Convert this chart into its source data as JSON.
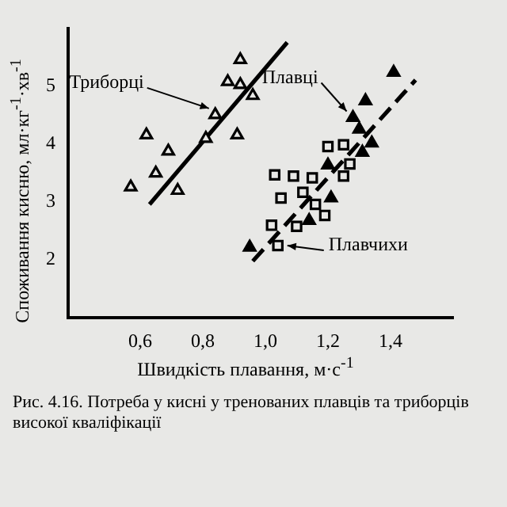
{
  "chart_data": {
    "type": "scatter",
    "xlabel": "Швидкість плавання, м·с$^{-1}$",
    "ylabel": "Споживання кисню, мл·кг$^{-1}$·хв$^{-1}$",
    "xlim": [
      0.37,
      1.6
    ],
    "ylim": [
      1,
      6
    ],
    "xticks": [
      {
        "value": 0.6,
        "label": "0,6"
      },
      {
        "value": 0.8,
        "label": "0,8"
      },
      {
        "value": 1.0,
        "label": "1,0"
      },
      {
        "value": 1.2,
        "label": "1,2"
      },
      {
        "value": 1.4,
        "label": "1,4"
      }
    ],
    "yticks": [
      2,
      3,
      4,
      5
    ],
    "grid": false,
    "legend": false,
    "series": [
      {
        "marker": "triangle",
        "color": "#e8e8e6",
        "x": [
          0.92,
          0.88,
          0.92,
          0.84,
          0.62,
          0.69,
          0.81,
          0.91,
          0.65,
          0.57,
          0.72,
          0.96
        ],
        "values": [
          5.46,
          5.08,
          5.03,
          4.51,
          4.16,
          3.88,
          4.1,
          4.16,
          3.5,
          3.26,
          3.2,
          4.84
        ]
      },
      {
        "marker": "triangle",
        "color": "#000000",
        "x": [
          1.41,
          1.32,
          1.28,
          1.3,
          1.34,
          1.31,
          1.2,
          1.21,
          1.14,
          0.95
        ],
        "values": [
          5.24,
          4.75,
          4.46,
          4.26,
          4.02,
          3.86,
          3.64,
          3.07,
          2.68,
          2.22
        ]
      },
      {
        "marker": "square",
        "color": "#e8e8e6",
        "x": [
          1.2,
          1.25,
          1.27,
          1.03,
          1.09,
          1.15,
          1.25,
          1.05,
          1.12,
          1.16,
          1.19,
          1.02,
          1.1,
          1.04
        ],
        "values": [
          3.96,
          3.99,
          3.66,
          3.47,
          3.45,
          3.42,
          3.45,
          3.07,
          3.17,
          2.96,
          2.77,
          2.6,
          2.58,
          2.25
        ]
      },
      {
        "type": "line",
        "line_style": "solid",
        "color": "#000000",
        "x": [
          0.63,
          1.07
        ],
        "values": [
          2.96,
          5.76
        ]
      },
      {
        "type": "line",
        "line_style": "dashed",
        "color": "#000000",
        "x": [
          0.96,
          1.48
        ],
        "values": [
          1.98,
          5.11
        ]
      }
    ],
    "annotations": [
      {
        "text": "Триборці",
        "x": 0.84,
        "y": 4.51
      },
      {
        "text": "Плавці",
        "x": 1.28,
        "y": 4.46
      },
      {
        "text": "Плавчихи",
        "x": 1.04,
        "y": 2.25
      },
      "Рис. 4.16. Потреба у кисні у тренованих плавців та триборців високої кваліфікації"
    ]
  }
}
